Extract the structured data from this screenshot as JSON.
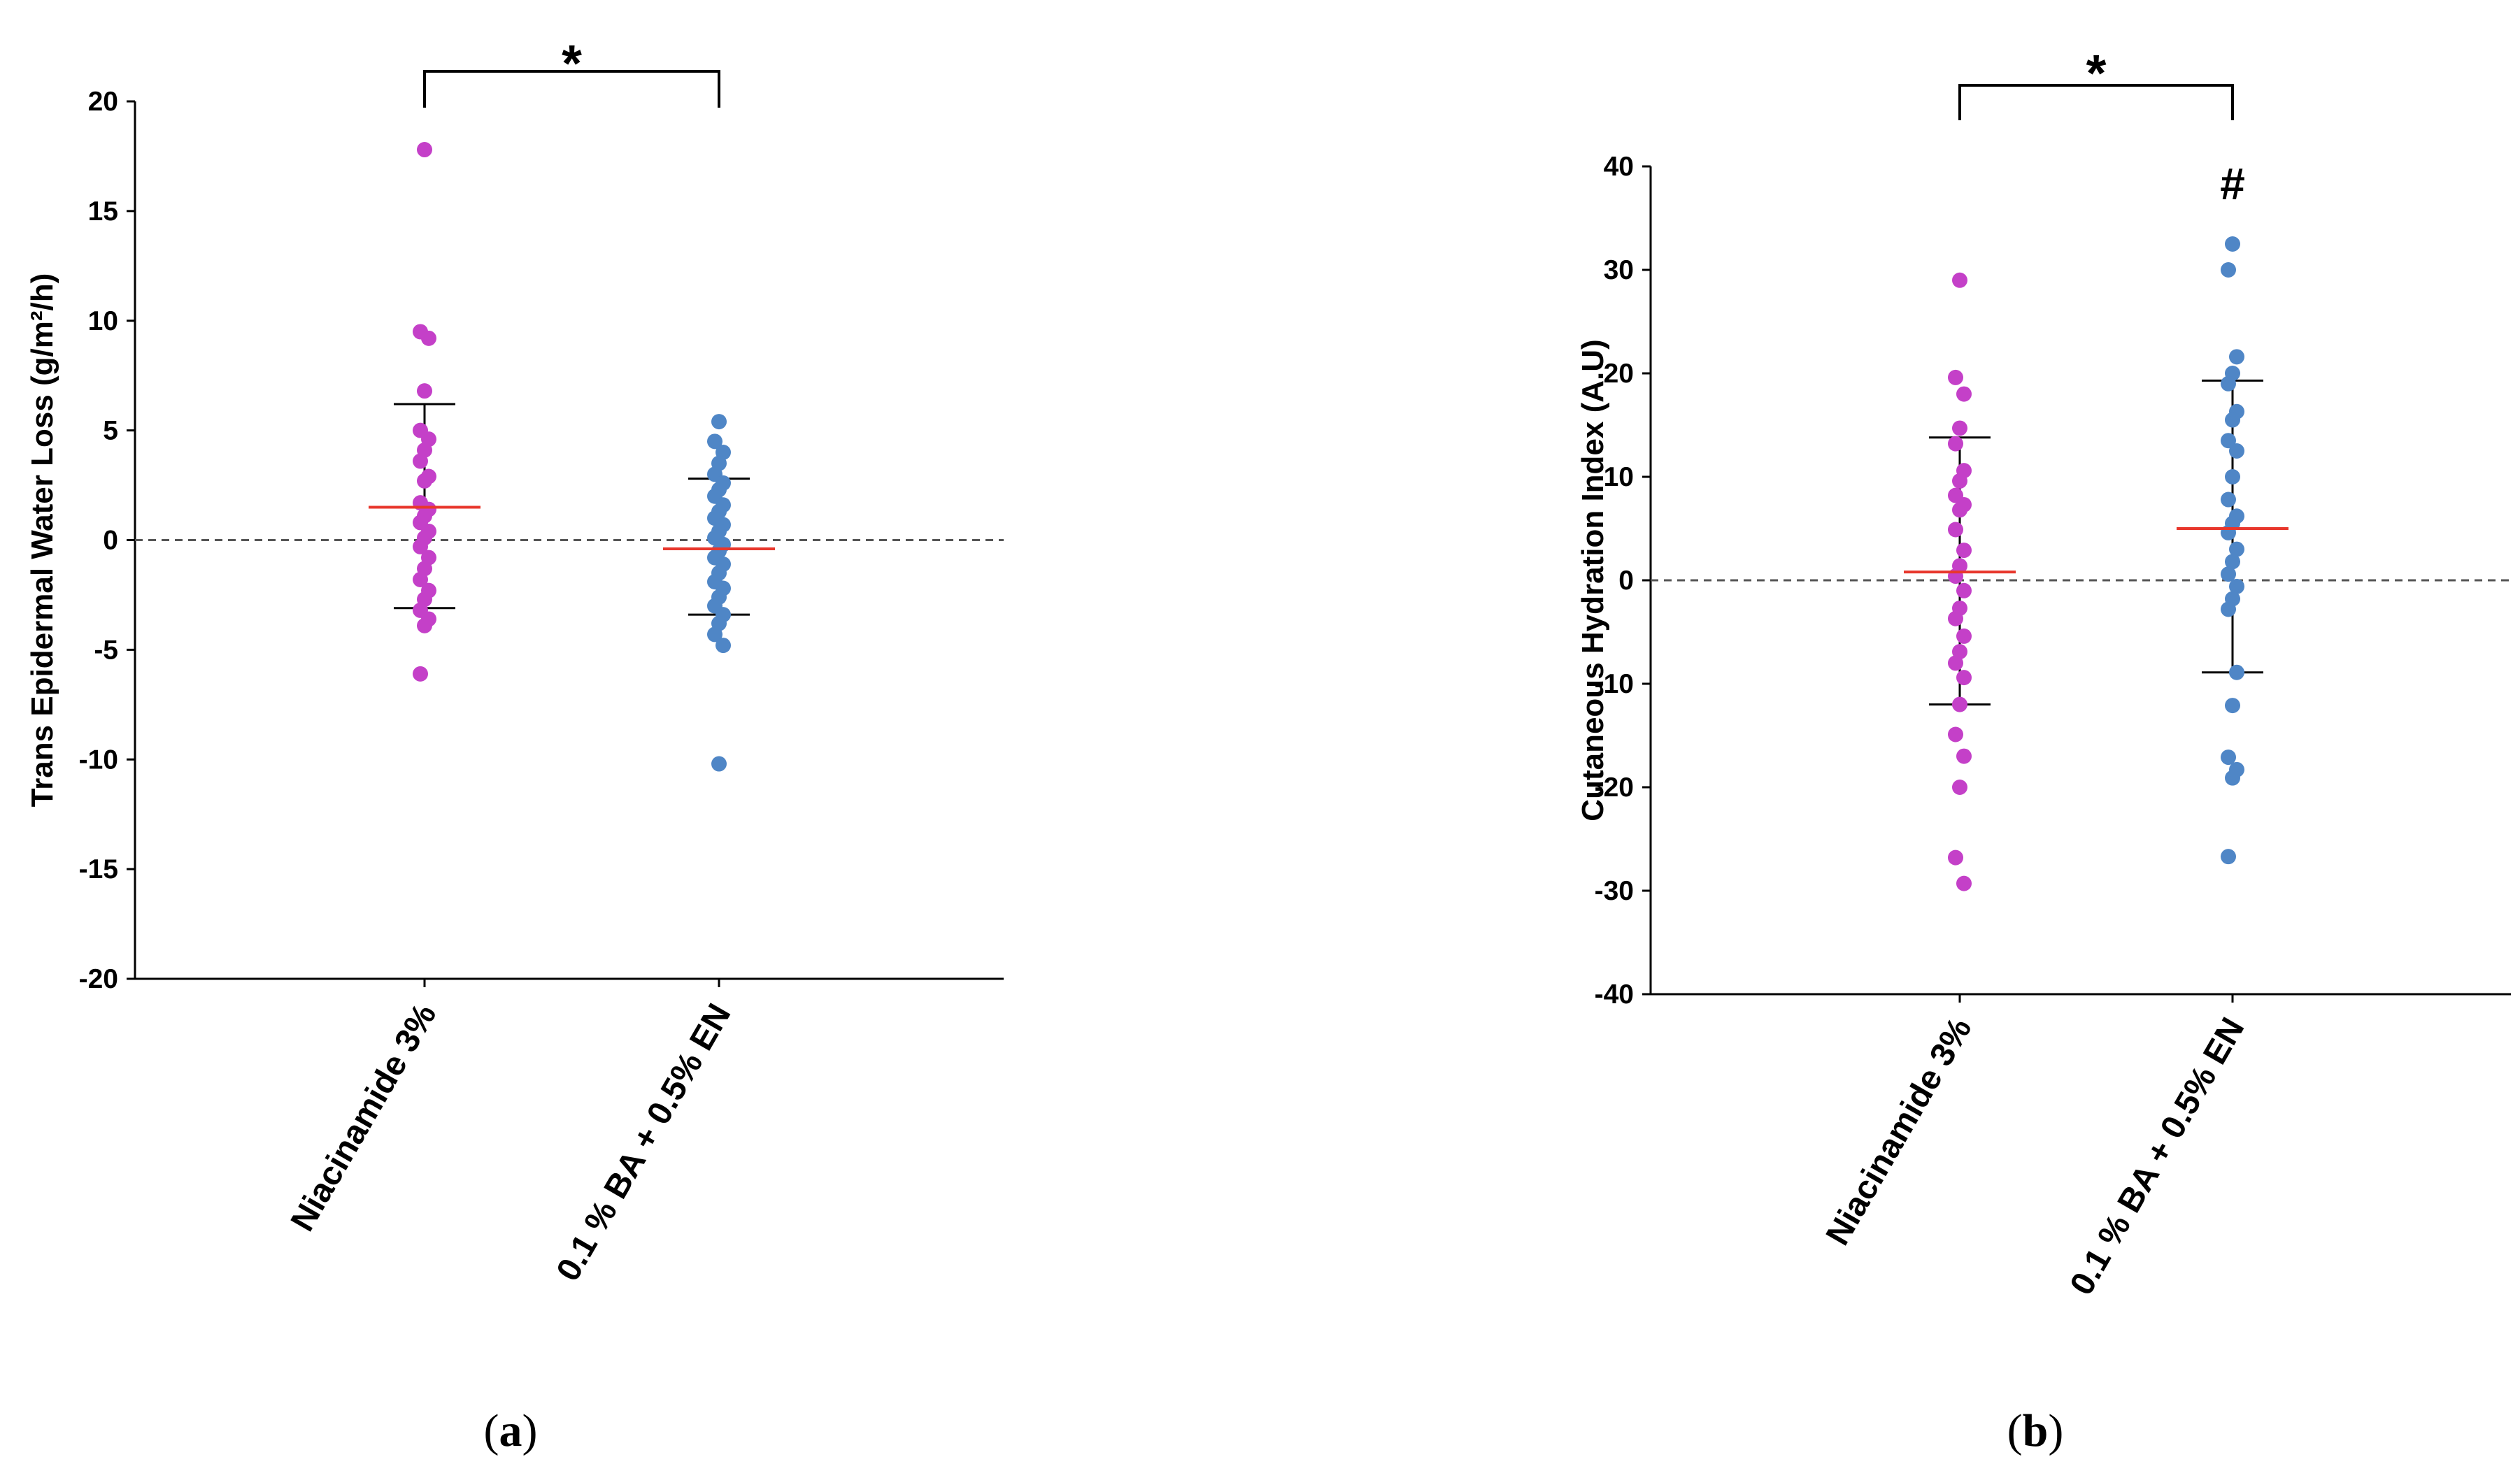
{
  "chart_data": [
    {
      "type": "scatter",
      "panel_label": "a",
      "ylabel": "Trans Epidermal Water Loss (g/m²/h)",
      "ylim": [
        -20,
        20
      ],
      "yticks": [
        -20,
        -15,
        -10,
        -5,
        0,
        5,
        10,
        15,
        20
      ],
      "categories": [
        "Niacinamide  3%",
        "0.1 % BA + 0.5% EN"
      ],
      "reference_line": 0,
      "significance": {
        "label": "*",
        "between": [
          0,
          1
        ]
      },
      "series": [
        {
          "name": "Niacinamide  3%",
          "color": "#c440c8",
          "mean": 1.5,
          "sd_upper": 6.2,
          "sd_lower": -3.1,
          "values": [
            17.8,
            9.5,
            9.2,
            6.8,
            5.0,
            4.6,
            4.1,
            3.6,
            2.9,
            2.7,
            1.7,
            1.4,
            1.1,
            0.8,
            0.4,
            0.1,
            -0.3,
            -0.8,
            -1.3,
            -1.8,
            -2.3,
            -2.7,
            -3.2,
            -3.6,
            -3.9,
            -6.1
          ]
        },
        {
          "name": "0.1 % BA + 0.5% EN",
          "color": "#4f86c6",
          "mean": -0.4,
          "sd_upper": 2.8,
          "sd_lower": -3.4,
          "values": [
            5.4,
            4.5,
            4.0,
            3.5,
            3.0,
            2.6,
            2.3,
            2.0,
            1.6,
            1.3,
            1.0,
            0.7,
            0.4,
            0.1,
            -0.2,
            -0.5,
            -0.8,
            -1.1,
            -1.5,
            -1.9,
            -2.2,
            -2.6,
            -3.0,
            -3.4,
            -3.8,
            -4.3,
            -4.8,
            -10.2
          ]
        }
      ]
    },
    {
      "type": "scatter",
      "panel_label": "b",
      "ylabel": "Cutaneous Hydration Index (A.U)",
      "ylim": [
        -40,
        40
      ],
      "yticks": [
        -40,
        -30,
        -20,
        -10,
        0,
        10,
        20,
        30,
        40
      ],
      "categories": [
        "Niacinamide  3%",
        "0.1 % BA + 0.5% EN"
      ],
      "reference_line": 0,
      "significance": {
        "label": "*",
        "between": [
          0,
          1
        ]
      },
      "annotation": {
        "label": "#",
        "category": 1
      },
      "series": [
        {
          "name": "Niacinamide  3%",
          "color": "#c440c8",
          "mean": 0.8,
          "sd_upper": 13.8,
          "sd_lower": -12.0,
          "values": [
            29.0,
            19.6,
            18.0,
            14.7,
            13.2,
            10.6,
            9.6,
            8.2,
            7.3,
            6.8,
            4.9,
            2.9,
            1.4,
            0.4,
            -1.0,
            -2.7,
            -3.7,
            -5.4,
            -6.9,
            -8.0,
            -9.4,
            -12.0,
            -14.9,
            -17.0,
            -20.0,
            -26.8,
            -29.3
          ]
        },
        {
          "name": "0.1 % BA + 0.5% EN",
          "color": "#4f86c6",
          "mean": 5.0,
          "sd_upper": 19.3,
          "sd_lower": -8.9,
          "values": [
            32.5,
            30.0,
            21.6,
            20.0,
            19.0,
            16.3,
            15.5,
            13.5,
            12.5,
            10.0,
            7.8,
            6.2,
            5.5,
            4.6,
            3.0,
            1.8,
            0.6,
            -0.6,
            -1.8,
            -2.8,
            -8.9,
            -12.1,
            -17.1,
            -18.3,
            -19.1,
            -26.7
          ]
        }
      ]
    }
  ]
}
